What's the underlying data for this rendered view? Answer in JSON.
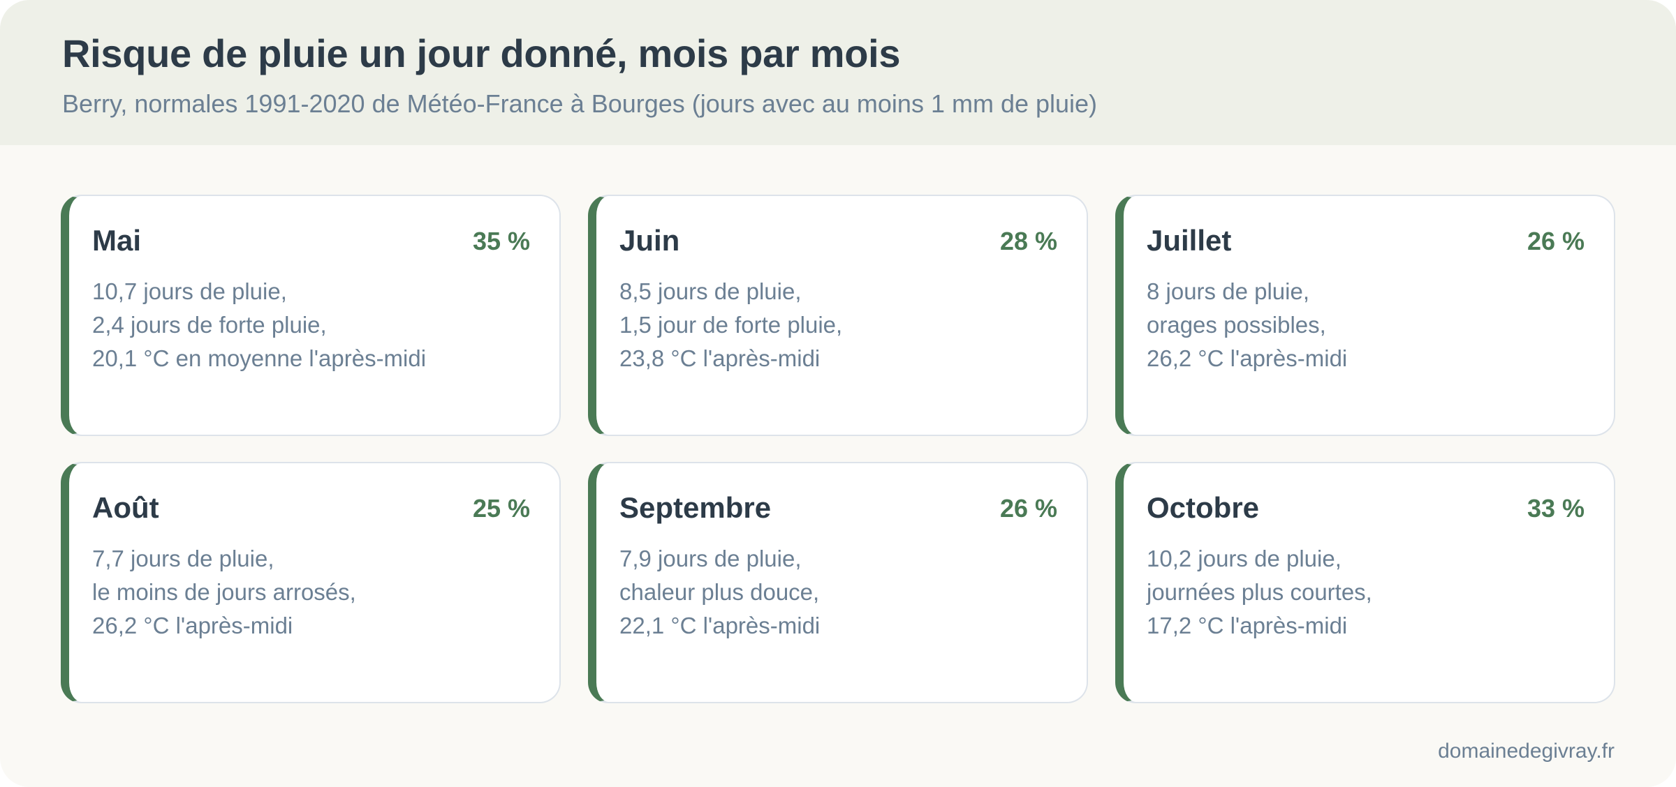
{
  "header": {
    "title": "Risque de pluie un jour donné, mois par mois",
    "subtitle": "Berry, normales 1991-2020 de Météo-France à Bourges (jours avec au moins 1 mm de pluie)"
  },
  "colors": {
    "accent": "#4a7a55",
    "title": "#2d3b48",
    "muted": "#6b7f93",
    "header_bg": "#eef0e8",
    "page_bg": "#faf9f5"
  },
  "cards": [
    {
      "month": "Mai",
      "percent": "35 %",
      "lines": [
        "10,7 jours de pluie,",
        "2,4 jours de forte pluie,",
        "20,1 °C en moyenne l'après-midi"
      ]
    },
    {
      "month": "Juin",
      "percent": "28 %",
      "lines": [
        "8,5 jours de pluie,",
        "1,5 jour de forte pluie,",
        "23,8 °C l'après-midi"
      ]
    },
    {
      "month": "Juillet",
      "percent": "26 %",
      "lines": [
        "8 jours de pluie,",
        "orages possibles,",
        "26,2 °C l'après-midi"
      ]
    },
    {
      "month": "Août",
      "percent": "25 %",
      "lines": [
        "7,7 jours de pluie,",
        "le moins de jours arrosés,",
        "26,2 °C l'après-midi"
      ]
    },
    {
      "month": "Septembre",
      "percent": "26 %",
      "lines": [
        "7,9 jours de pluie,",
        "chaleur plus douce,",
        "22,1 °C l'après-midi"
      ]
    },
    {
      "month": "Octobre",
      "percent": "33 %",
      "lines": [
        "10,2 jours de pluie,",
        "journées plus courtes,",
        "17,2 °C l'après-midi"
      ]
    }
  ],
  "footer": {
    "site": "domainedegivray.fr"
  }
}
